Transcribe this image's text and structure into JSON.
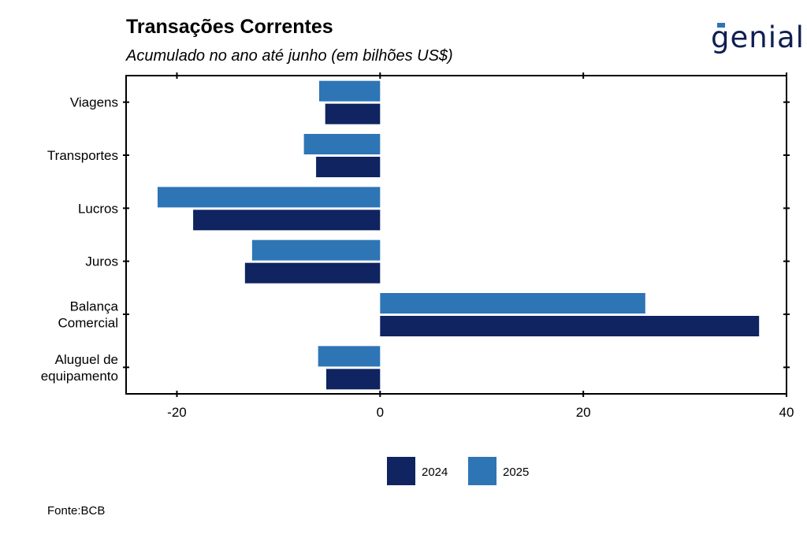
{
  "header": {
    "title": "Transações Correntes",
    "subtitle": "Acumulado no ano até junho (em bilhões US$)",
    "logo_text": "genial"
  },
  "footer": {
    "source": "Fonte:BCB"
  },
  "colors": {
    "2024": "#0f2460",
    "2025": "#2e75b6",
    "brand_accent": "#2e75b6"
  },
  "chart_data": {
    "type": "bar",
    "orientation": "horizontal",
    "categories": [
      "Viagens",
      "Transportes",
      "Lucros",
      "Juros",
      "Balança Comercial",
      "Aluguel de equipamento"
    ],
    "category_lines": [
      [
        "Viagens"
      ],
      [
        "Transportes"
      ],
      [
        "Lucros"
      ],
      [
        "Juros"
      ],
      [
        "Balança",
        "Comercial"
      ],
      [
        "Aluguel de",
        "equipamento"
      ]
    ],
    "series": [
      {
        "name": "2024",
        "values": [
          -5.4,
          -6.3,
          -18.4,
          -13.3,
          37.3,
          -5.3
        ]
      },
      {
        "name": "2025",
        "values": [
          -6.0,
          -7.5,
          -21.9,
          -12.6,
          26.1,
          -6.1
        ]
      }
    ],
    "xlim": [
      -25,
      40
    ],
    "xticks": [
      -20,
      0,
      20,
      40
    ],
    "grid": false,
    "legend_position": "bottom"
  }
}
